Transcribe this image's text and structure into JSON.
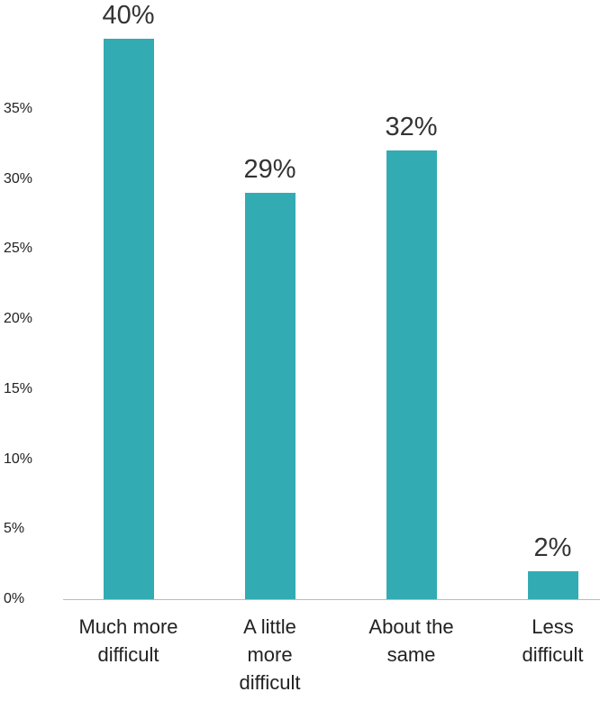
{
  "chart_data": {
    "type": "bar",
    "categories": [
      "Much more difficult",
      "A little more difficult",
      "About the same",
      "Less difficult"
    ],
    "values": [
      40,
      29,
      32,
      2
    ],
    "value_labels": [
      "40%",
      "29%",
      "32%",
      "2%"
    ],
    "color": "#33abb3",
    "ylim": [
      0,
      42
    ],
    "yticks": [
      {
        "value": 0,
        "label": "0%"
      },
      {
        "value": 5,
        "label": "5%"
      },
      {
        "value": 10,
        "label": "10%"
      },
      {
        "value": 15,
        "label": "15%"
      },
      {
        "value": 20,
        "label": "20%"
      },
      {
        "value": 25,
        "label": "25%"
      },
      {
        "value": 30,
        "label": "30%"
      },
      {
        "value": 35,
        "label": "35%"
      }
    ],
    "grid": false
  }
}
